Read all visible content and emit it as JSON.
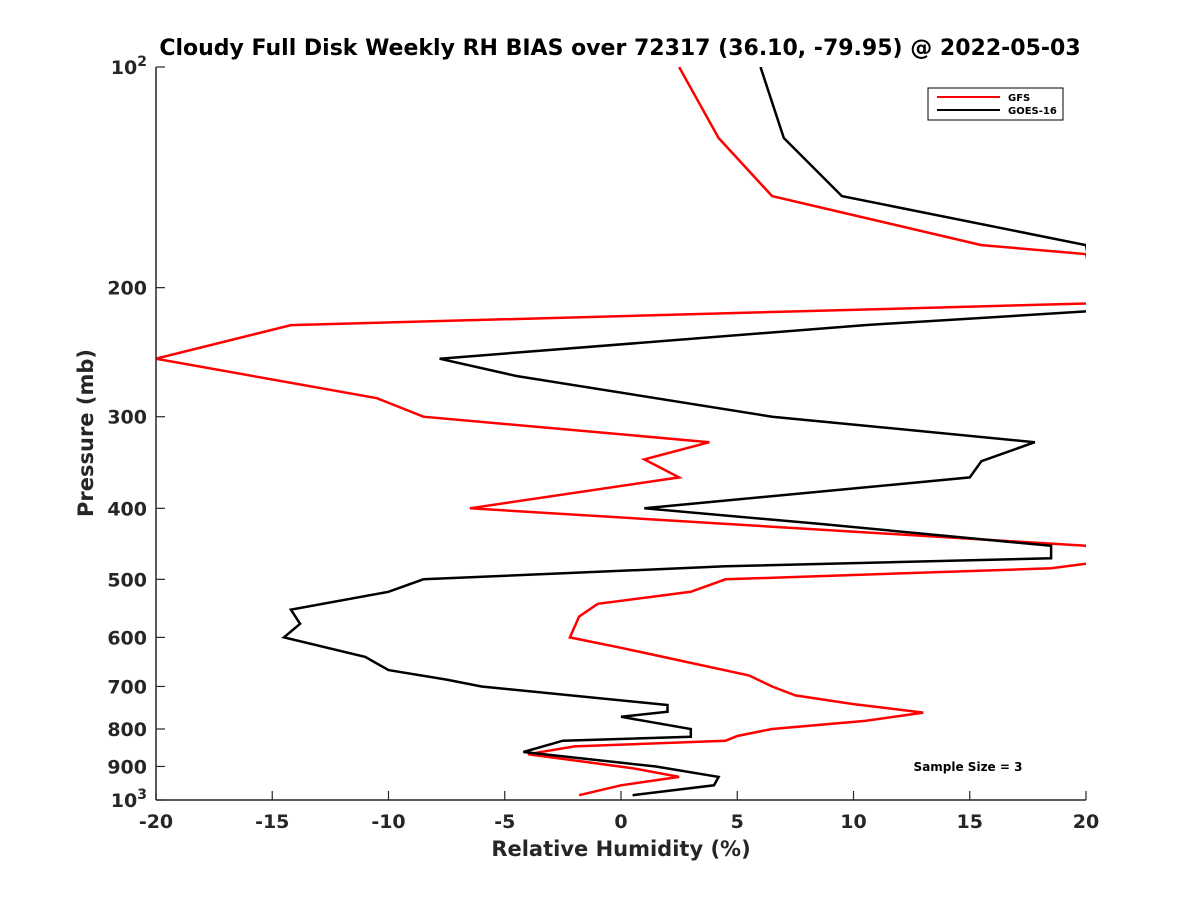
{
  "chart_data": {
    "type": "line",
    "title": "Cloudy Full Disk Weekly RH BIAS over 72317 (36.10, -79.95) @ 2022-05-03",
    "xlabel": "Relative Humidity (%)",
    "ylabel": "Pressure (mb)",
    "xlim": [
      -20,
      20
    ],
    "ylim": [
      100,
      1000
    ],
    "yscale": "log",
    "y_reversed": true,
    "grid": false,
    "legend_position": "top-right",
    "x_ticks": [
      {
        "value": -20,
        "label": "-20"
      },
      {
        "value": -15,
        "label": "-15"
      },
      {
        "value": -10,
        "label": "-10"
      },
      {
        "value": -5,
        "label": "-5"
      },
      {
        "value": 0,
        "label": "0"
      },
      {
        "value": 5,
        "label": "5"
      },
      {
        "value": 10,
        "label": "10"
      },
      {
        "value": 15,
        "label": "15"
      },
      {
        "value": 20,
        "label": "20"
      }
    ],
    "y_ticks": [
      {
        "value": 100,
        "base": "10",
        "exponent": "2"
      },
      {
        "value": 200,
        "label": "200"
      },
      {
        "value": 300,
        "label": "300"
      },
      {
        "value": 400,
        "label": "400"
      },
      {
        "value": 500,
        "label": "500"
      },
      {
        "value": 600,
        "label": "600"
      },
      {
        "value": 700,
        "label": "700"
      },
      {
        "value": 800,
        "label": "800"
      },
      {
        "value": 900,
        "label": "900"
      },
      {
        "value": 1000,
        "base": "10",
        "exponent": "3"
      }
    ],
    "series": [
      {
        "name": "GFS",
        "color": "#ff0000",
        "points": [
          {
            "x": 2.5,
            "y": 100
          },
          {
            "x": 4.2,
            "y": 125
          },
          {
            "x": 6.5,
            "y": 150
          },
          {
            "x": 15.5,
            "y": 175
          },
          {
            "x": 20.0,
            "y": 180
          },
          {
            "x": 20.5,
            "y": 210
          },
          {
            "x": -14.2,
            "y": 225
          },
          {
            "x": -20.0,
            "y": 250
          },
          {
            "x": -10.5,
            "y": 283
          },
          {
            "x": -8.5,
            "y": 300
          },
          {
            "x": 3.8,
            "y": 325
          },
          {
            "x": 1.0,
            "y": 343
          },
          {
            "x": 2.5,
            "y": 363
          },
          {
            "x": -6.5,
            "y": 400
          },
          {
            "x": 20.0,
            "y": 450
          },
          {
            "x": 20.5,
            "y": 474
          },
          {
            "x": 18.5,
            "y": 483
          },
          {
            "x": 4.5,
            "y": 500
          },
          {
            "x": 3.0,
            "y": 520
          },
          {
            "x": -1.0,
            "y": 540
          },
          {
            "x": -1.8,
            "y": 562
          },
          {
            "x": -2.2,
            "y": 600
          },
          {
            "x": 0.0,
            "y": 620
          },
          {
            "x": 3.0,
            "y": 650
          },
          {
            "x": 5.5,
            "y": 676
          },
          {
            "x": 6.5,
            "y": 700
          },
          {
            "x": 7.5,
            "y": 720
          },
          {
            "x": 10.0,
            "y": 740
          },
          {
            "x": 13.0,
            "y": 760
          },
          {
            "x": 10.5,
            "y": 780
          },
          {
            "x": 6.5,
            "y": 800
          },
          {
            "x": 5.0,
            "y": 818
          },
          {
            "x": 4.5,
            "y": 830
          },
          {
            "x": -2.0,
            "y": 845
          },
          {
            "x": -4.0,
            "y": 866
          },
          {
            "x": 0.5,
            "y": 905
          },
          {
            "x": 2.5,
            "y": 930
          },
          {
            "x": 0.0,
            "y": 955
          },
          {
            "x": -1.8,
            "y": 985
          }
        ]
      },
      {
        "name": "GOES-16",
        "color": "#000000",
        "points": [
          {
            "x": 6.0,
            "y": 100
          },
          {
            "x": 7.0,
            "y": 125
          },
          {
            "x": 9.5,
            "y": 150
          },
          {
            "x": 20.0,
            "y": 175
          },
          {
            "x": 20.5,
            "y": 215
          },
          {
            "x": 10.5,
            "y": 225
          },
          {
            "x": -7.8,
            "y": 250
          },
          {
            "x": -4.5,
            "y": 264
          },
          {
            "x": 6.5,
            "y": 300
          },
          {
            "x": 17.8,
            "y": 325
          },
          {
            "x": 15.5,
            "y": 345
          },
          {
            "x": 15.0,
            "y": 363
          },
          {
            "x": 1.0,
            "y": 400
          },
          {
            "x": 8.5,
            "y": 420
          },
          {
            "x": 18.5,
            "y": 450
          },
          {
            "x": 18.5,
            "y": 468
          },
          {
            "x": 4.5,
            "y": 480
          },
          {
            "x": -8.5,
            "y": 500
          },
          {
            "x": -10.0,
            "y": 520
          },
          {
            "x": -14.2,
            "y": 550
          },
          {
            "x": -13.8,
            "y": 575
          },
          {
            "x": -14.5,
            "y": 600
          },
          {
            "x": -11.0,
            "y": 638
          },
          {
            "x": -10.0,
            "y": 665
          },
          {
            "x": -7.5,
            "y": 685
          },
          {
            "x": -6.0,
            "y": 700
          },
          {
            "x": 2.0,
            "y": 742
          },
          {
            "x": 2.0,
            "y": 758
          },
          {
            "x": 0.0,
            "y": 770
          },
          {
            "x": 3.0,
            "y": 800
          },
          {
            "x": 3.0,
            "y": 820
          },
          {
            "x": -2.5,
            "y": 830
          },
          {
            "x": -4.2,
            "y": 860
          },
          {
            "x": 1.5,
            "y": 900
          },
          {
            "x": 4.2,
            "y": 930
          },
          {
            "x": 4.0,
            "y": 955
          },
          {
            "x": 0.5,
            "y": 985
          }
        ]
      }
    ],
    "annotations": [
      {
        "text": "Sample Size = 3",
        "x": 12.5,
        "y": 900
      }
    ]
  }
}
